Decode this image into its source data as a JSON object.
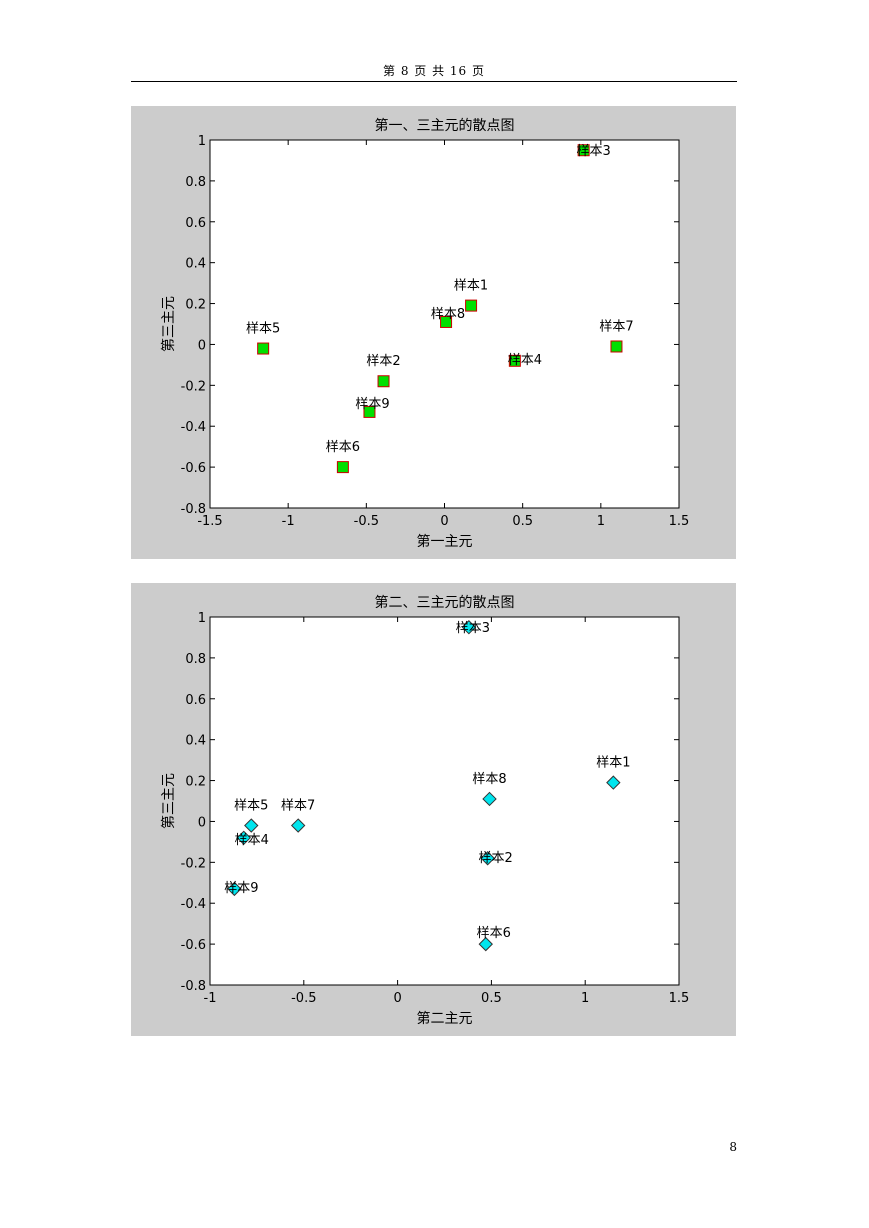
{
  "page": {
    "header": "第 8 页 共 16 页",
    "footer_page_number": "8"
  },
  "chart_data": [
    {
      "type": "scatter",
      "title": "第一、三主元的散点图",
      "xlabel": "第一主元",
      "ylabel": "第三主元",
      "xlim": [
        -1.5,
        1.5
      ],
      "ylim": [
        -0.8,
        1
      ],
      "xticks": [
        -1.5,
        -1,
        -0.5,
        0,
        0.5,
        1,
        1.5
      ],
      "xtick_labels": [
        "-1.5",
        "-1",
        "-0.5",
        "0",
        "0.5",
        "1",
        "1.5"
      ],
      "yticks": [
        -0.8,
        -0.6,
        -0.4,
        -0.2,
        0,
        0.2,
        0.4,
        0.6,
        0.8,
        1
      ],
      "ytick_labels": [
        "-0.8",
        "-0.6",
        "-0.4",
        "-0.2",
        "0",
        "0.2",
        "0.4",
        "0.6",
        "0.8",
        "1"
      ],
      "marker": "square",
      "marker_fill": "#00e000",
      "marker_edge": "#cc0000",
      "grid": false,
      "points": [
        {
          "label": "样本1",
          "x": 0.17,
          "y": 0.19
        },
        {
          "label": "样本2",
          "x": -0.39,
          "y": -0.18
        },
        {
          "label": "样本3",
          "x": 0.89,
          "y": 0.95
        },
        {
          "label": "样本4",
          "x": 0.45,
          "y": -0.08
        },
        {
          "label": "样本5",
          "x": -1.16,
          "y": -0.02
        },
        {
          "label": "样本6",
          "x": -0.65,
          "y": -0.6
        },
        {
          "label": "样本7",
          "x": 1.1,
          "y": -0.01
        },
        {
          "label": "样本8",
          "x": 0.01,
          "y": 0.11
        },
        {
          "label": "样本9",
          "x": -0.48,
          "y": -0.33
        }
      ]
    },
    {
      "type": "scatter",
      "title": "第二、三主元的散点图",
      "xlabel": "第二主元",
      "ylabel": "第三主元",
      "xlim": [
        -1,
        1.5
      ],
      "ylim": [
        -0.8,
        1
      ],
      "xticks": [
        -1,
        -0.5,
        0,
        0.5,
        1,
        1.5
      ],
      "xtick_labels": [
        "-1",
        "-0.5",
        "0",
        "0.5",
        "1",
        "1.5"
      ],
      "yticks": [
        -0.8,
        -0.6,
        -0.4,
        -0.2,
        0,
        0.2,
        0.4,
        0.6,
        0.8,
        1
      ],
      "ytick_labels": [
        "-0.8",
        "-0.6",
        "-0.4",
        "-0.2",
        "0",
        "0.2",
        "0.4",
        "0.6",
        "0.8",
        "1"
      ],
      "marker": "diamond",
      "marker_fill": "#00e5ee",
      "marker_edge": "#333333",
      "grid": false,
      "points": [
        {
          "label": "样本1",
          "x": 1.15,
          "y": 0.19
        },
        {
          "label": "样本2",
          "x": 0.48,
          "y": -0.18
        },
        {
          "label": "样本3",
          "x": 0.38,
          "y": 0.95
        },
        {
          "label": "样本4",
          "x": -0.82,
          "y": -0.08
        },
        {
          "label": "样本5",
          "x": -0.78,
          "y": -0.02
        },
        {
          "label": "样本6",
          "x": 0.47,
          "y": -0.6
        },
        {
          "label": "样本7",
          "x": -0.53,
          "y": -0.02
        },
        {
          "label": "样本8",
          "x": 0.49,
          "y": 0.11
        },
        {
          "label": "样本9",
          "x": -0.87,
          "y": -0.33
        }
      ]
    }
  ]
}
